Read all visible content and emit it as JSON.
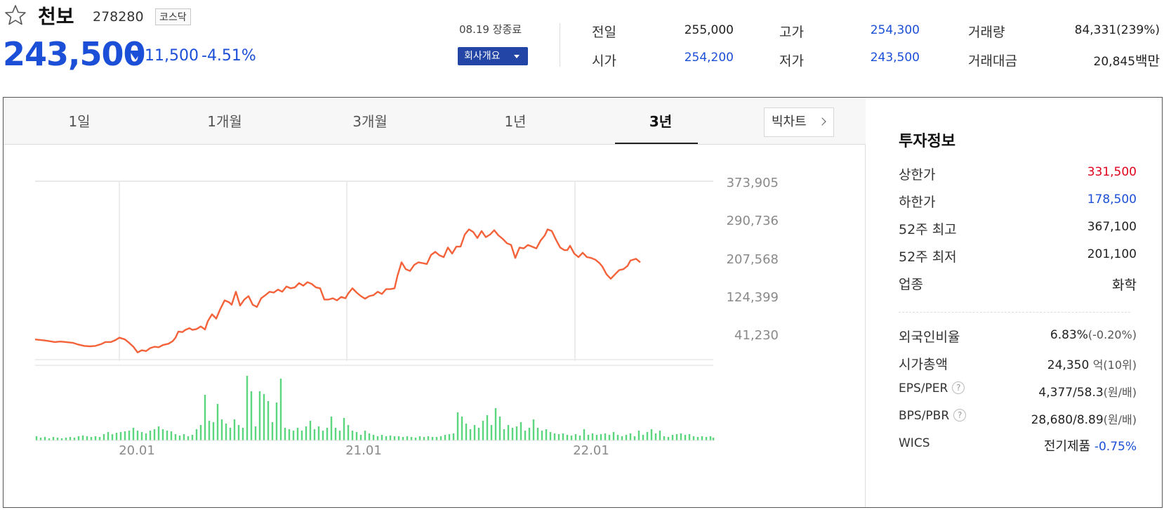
{
  "stock": {
    "name": "천보",
    "code": "278280",
    "market": "코스닥",
    "price": "243,500",
    "change": "11,500",
    "change_rate": "-4.51%",
    "trade_date": "08.19 장종료",
    "company_button": "회사개요"
  },
  "quote": {
    "prev_close_label": "전일",
    "prev_close": "255,000",
    "high_label": "고가",
    "high": "254,300",
    "volume_label": "거래량",
    "volume": "84,331(239%)",
    "open_label": "시가",
    "open": "254,200",
    "low_label": "저가",
    "low": "243,500",
    "amount_label": "거래대금",
    "amount": "20,845",
    "amount_unit": "백만"
  },
  "tabs": [
    "1일",
    "1개월",
    "3개월",
    "1년",
    "3년"
  ],
  "active_tab": "3년",
  "big_chart_label": "빅차트",
  "colors": {
    "up": "#e0001b",
    "down": "#1c4fd8",
    "line": "#f4623a",
    "volume": "#5cd67e",
    "button": "#2245a6"
  },
  "chart_data": {
    "type": "line",
    "y_ticks": [
      "373,905",
      "290,736",
      "207,568",
      "124,399",
      "41,230"
    ],
    "x_ticks": [
      "20.01",
      "21.01",
      "22.01"
    ],
    "ylim": [
      0,
      415000
    ],
    "price_series": [
      [
        0,
        50000
      ],
      [
        12,
        48000
      ],
      [
        20,
        46000
      ],
      [
        28,
        44000
      ],
      [
        36,
        45000
      ],
      [
        44,
        44000
      ],
      [
        54,
        42000
      ],
      [
        62,
        38000
      ],
      [
        70,
        35000
      ],
      [
        78,
        34000
      ],
      [
        86,
        35000
      ],
      [
        94,
        39000
      ],
      [
        100,
        44000
      ],
      [
        108,
        44000
      ],
      [
        114,
        48000
      ],
      [
        120,
        54000
      ],
      [
        128,
        50000
      ],
      [
        134,
        42000
      ],
      [
        140,
        33000
      ],
      [
        146,
        20000
      ],
      [
        152,
        25000
      ],
      [
        158,
        23000
      ],
      [
        164,
        30000
      ],
      [
        170,
        33000
      ],
      [
        176,
        32000
      ],
      [
        182,
        37000
      ],
      [
        190,
        40000
      ],
      [
        196,
        46000
      ],
      [
        200,
        54000
      ],
      [
        204,
        68000
      ],
      [
        210,
        67000
      ],
      [
        214,
        72000
      ],
      [
        220,
        76000
      ],
      [
        224,
        72000
      ],
      [
        230,
        74000
      ],
      [
        236,
        80000
      ],
      [
        242,
        73000
      ],
      [
        246,
        92000
      ],
      [
        252,
        108000
      ],
      [
        258,
        98000
      ],
      [
        264,
        121000
      ],
      [
        270,
        140000
      ],
      [
        276,
        136000
      ],
      [
        280,
        130000
      ],
      [
        286,
        160000
      ],
      [
        292,
        128000
      ],
      [
        298,
        142000
      ],
      [
        304,
        150000
      ],
      [
        310,
        130000
      ],
      [
        316,
        125000
      ],
      [
        322,
        145000
      ],
      [
        328,
        152000
      ],
      [
        334,
        160000
      ],
      [
        340,
        158000
      ],
      [
        346,
        165000
      ],
      [
        352,
        160000
      ],
      [
        358,
        172000
      ],
      [
        364,
        168000
      ],
      [
        370,
        170000
      ],
      [
        376,
        180000
      ],
      [
        382,
        174000
      ],
      [
        388,
        182000
      ],
      [
        394,
        178000
      ],
      [
        400,
        170000
      ],
      [
        406,
        168000
      ],
      [
        412,
        142000
      ],
      [
        418,
        142000
      ],
      [
        424,
        145000
      ],
      [
        430,
        140000
      ],
      [
        436,
        148000
      ],
      [
        442,
        145000
      ],
      [
        446,
        156000
      ],
      [
        452,
        168000
      ],
      [
        458,
        158000
      ],
      [
        464,
        150000
      ],
      [
        470,
        144000
      ],
      [
        476,
        150000
      ],
      [
        482,
        152000
      ],
      [
        488,
        160000
      ],
      [
        494,
        155000
      ],
      [
        500,
        166000
      ],
      [
        506,
        166000
      ],
      [
        512,
        168000
      ],
      [
        516,
        196000
      ],
      [
        522,
        228000
      ],
      [
        528,
        212000
      ],
      [
        534,
        208000
      ],
      [
        540,
        222000
      ],
      [
        546,
        228000
      ],
      [
        552,
        226000
      ],
      [
        558,
        224000
      ],
      [
        564,
        245000
      ],
      [
        570,
        252000
      ],
      [
        576,
        244000
      ],
      [
        582,
        240000
      ],
      [
        588,
        262000
      ],
      [
        594,
        248000
      ],
      [
        600,
        264000
      ],
      [
        606,
        264000
      ],
      [
        612,
        292000
      ],
      [
        618,
        304000
      ],
      [
        624,
        298000
      ],
      [
        630,
        284000
      ],
      [
        636,
        300000
      ],
      [
        642,
        286000
      ],
      [
        648,
        292000
      ],
      [
        654,
        302000
      ],
      [
        660,
        290000
      ],
      [
        666,
        282000
      ],
      [
        672,
        272000
      ],
      [
        678,
        268000
      ],
      [
        684,
        238000
      ],
      [
        690,
        262000
      ],
      [
        696,
        260000
      ],
      [
        702,
        268000
      ],
      [
        708,
        264000
      ],
      [
        714,
        260000
      ],
      [
        720,
        278000
      ],
      [
        726,
        290000
      ],
      [
        730,
        304000
      ],
      [
        736,
        300000
      ],
      [
        742,
        280000
      ],
      [
        748,
        262000
      ],
      [
        754,
        256000
      ],
      [
        758,
        256000
      ],
      [
        762,
        266000
      ],
      [
        768,
        248000
      ],
      [
        774,
        240000
      ],
      [
        780,
        250000
      ],
      [
        786,
        240000
      ],
      [
        792,
        238000
      ],
      [
        798,
        234000
      ],
      [
        804,
        226000
      ],
      [
        808,
        218000
      ],
      [
        814,
        200000
      ],
      [
        820,
        190000
      ],
      [
        826,
        200000
      ],
      [
        832,
        210000
      ],
      [
        838,
        212000
      ],
      [
        844,
        220000
      ],
      [
        848,
        232000
      ],
      [
        856,
        236000
      ],
      [
        862,
        228000
      ]
    ],
    "volume_bars": [
      {
        "x": 2,
        "v": 6
      },
      {
        "x": 8,
        "v": 4
      },
      {
        "x": 14,
        "v": 5
      },
      {
        "x": 20,
        "v": 3
      },
      {
        "x": 26,
        "v": 5
      },
      {
        "x": 32,
        "v": 4
      },
      {
        "x": 38,
        "v": 3
      },
      {
        "x": 44,
        "v": 4
      },
      {
        "x": 50,
        "v": 5
      },
      {
        "x": 56,
        "v": 4
      },
      {
        "x": 62,
        "v": 6
      },
      {
        "x": 68,
        "v": 7
      },
      {
        "x": 74,
        "v": 6
      },
      {
        "x": 80,
        "v": 5
      },
      {
        "x": 86,
        "v": 6
      },
      {
        "x": 92,
        "v": 5
      },
      {
        "x": 98,
        "v": 9
      },
      {
        "x": 104,
        "v": 12
      },
      {
        "x": 110,
        "v": 9
      },
      {
        "x": 116,
        "v": 11
      },
      {
        "x": 122,
        "v": 12
      },
      {
        "x": 128,
        "v": 13
      },
      {
        "x": 134,
        "v": 14
      },
      {
        "x": 140,
        "v": 18
      },
      {
        "x": 146,
        "v": 14
      },
      {
        "x": 152,
        "v": 12
      },
      {
        "x": 158,
        "v": 10
      },
      {
        "x": 164,
        "v": 14
      },
      {
        "x": 170,
        "v": 16
      },
      {
        "x": 176,
        "v": 20
      },
      {
        "x": 182,
        "v": 16
      },
      {
        "x": 188,
        "v": 14
      },
      {
        "x": 194,
        "v": 13
      },
      {
        "x": 200,
        "v": 9
      },
      {
        "x": 206,
        "v": 7
      },
      {
        "x": 212,
        "v": 9
      },
      {
        "x": 218,
        "v": 6
      },
      {
        "x": 224,
        "v": 8
      },
      {
        "x": 230,
        "v": 16
      },
      {
        "x": 236,
        "v": 22
      },
      {
        "x": 242,
        "v": 65
      },
      {
        "x": 248,
        "v": 28
      },
      {
        "x": 254,
        "v": 26
      },
      {
        "x": 260,
        "v": 52
      },
      {
        "x": 266,
        "v": 30
      },
      {
        "x": 272,
        "v": 24
      },
      {
        "x": 278,
        "v": 18
      },
      {
        "x": 284,
        "v": 30
      },
      {
        "x": 290,
        "v": 22
      },
      {
        "x": 296,
        "v": 18
      },
      {
        "x": 302,
        "v": 92
      },
      {
        "x": 308,
        "v": 70
      },
      {
        "x": 314,
        "v": 20
      },
      {
        "x": 320,
        "v": 70
      },
      {
        "x": 326,
        "v": 66
      },
      {
        "x": 332,
        "v": 56
      },
      {
        "x": 338,
        "v": 26
      },
      {
        "x": 344,
        "v": 54
      },
      {
        "x": 350,
        "v": 88
      },
      {
        "x": 356,
        "v": 18
      },
      {
        "x": 362,
        "v": 16
      },
      {
        "x": 368,
        "v": 14
      },
      {
        "x": 374,
        "v": 18
      },
      {
        "x": 380,
        "v": 14
      },
      {
        "x": 386,
        "v": 20
      },
      {
        "x": 392,
        "v": 28
      },
      {
        "x": 398,
        "v": 16
      },
      {
        "x": 404,
        "v": 20
      },
      {
        "x": 410,
        "v": 14
      },
      {
        "x": 416,
        "v": 18
      },
      {
        "x": 422,
        "v": 34
      },
      {
        "x": 428,
        "v": 18
      },
      {
        "x": 434,
        "v": 14
      },
      {
        "x": 440,
        "v": 32
      },
      {
        "x": 446,
        "v": 22
      },
      {
        "x": 452,
        "v": 14
      },
      {
        "x": 458,
        "v": 12
      },
      {
        "x": 464,
        "v": 8
      },
      {
        "x": 470,
        "v": 14
      },
      {
        "x": 476,
        "v": 10
      },
      {
        "x": 482,
        "v": 8
      },
      {
        "x": 488,
        "v": 6
      },
      {
        "x": 494,
        "v": 8
      },
      {
        "x": 500,
        "v": 6
      },
      {
        "x": 506,
        "v": 7
      },
      {
        "x": 512,
        "v": 6
      },
      {
        "x": 518,
        "v": 6
      },
      {
        "x": 524,
        "v": 5
      },
      {
        "x": 530,
        "v": 6
      },
      {
        "x": 536,
        "v": 5
      },
      {
        "x": 542,
        "v": 4
      },
      {
        "x": 548,
        "v": 6
      },
      {
        "x": 554,
        "v": 5
      },
      {
        "x": 560,
        "v": 6
      },
      {
        "x": 566,
        "v": 5
      },
      {
        "x": 572,
        "v": 5
      },
      {
        "x": 578,
        "v": 6
      },
      {
        "x": 584,
        "v": 8
      },
      {
        "x": 590,
        "v": 9
      },
      {
        "x": 596,
        "v": 10
      },
      {
        "x": 602,
        "v": 40
      },
      {
        "x": 608,
        "v": 34
      },
      {
        "x": 614,
        "v": 24
      },
      {
        "x": 620,
        "v": 16
      },
      {
        "x": 626,
        "v": 22
      },
      {
        "x": 632,
        "v": 18
      },
      {
        "x": 638,
        "v": 28
      },
      {
        "x": 644,
        "v": 36
      },
      {
        "x": 650,
        "v": 22
      },
      {
        "x": 656,
        "v": 46
      },
      {
        "x": 662,
        "v": 34
      },
      {
        "x": 668,
        "v": 16
      },
      {
        "x": 674,
        "v": 22
      },
      {
        "x": 680,
        "v": 18
      },
      {
        "x": 686,
        "v": 20
      },
      {
        "x": 692,
        "v": 26
      },
      {
        "x": 698,
        "v": 14
      },
      {
        "x": 704,
        "v": 18
      },
      {
        "x": 710,
        "v": 30
      },
      {
        "x": 716,
        "v": 18
      },
      {
        "x": 722,
        "v": 14
      },
      {
        "x": 728,
        "v": 16
      },
      {
        "x": 734,
        "v": 12
      },
      {
        "x": 740,
        "v": 10
      },
      {
        "x": 746,
        "v": 9
      },
      {
        "x": 752,
        "v": 10
      },
      {
        "x": 758,
        "v": 8
      },
      {
        "x": 764,
        "v": 7
      },
      {
        "x": 770,
        "v": 9
      },
      {
        "x": 776,
        "v": 7
      },
      {
        "x": 782,
        "v": 16
      },
      {
        "x": 788,
        "v": 8
      },
      {
        "x": 794,
        "v": 10
      },
      {
        "x": 800,
        "v": 8
      },
      {
        "x": 806,
        "v": 9
      },
      {
        "x": 812,
        "v": 10
      },
      {
        "x": 818,
        "v": 8
      },
      {
        "x": 824,
        "v": 12
      },
      {
        "x": 830,
        "v": 8
      },
      {
        "x": 836,
        "v": 6
      },
      {
        "x": 842,
        "v": 8
      },
      {
        "x": 848,
        "v": 10
      },
      {
        "x": 854,
        "v": 6
      },
      {
        "x": 860,
        "v": 14
      },
      {
        "x": 866,
        "v": 8
      },
      {
        "x": 872,
        "v": 12
      },
      {
        "x": 878,
        "v": 16
      },
      {
        "x": 884,
        "v": 10
      },
      {
        "x": 890,
        "v": 14
      },
      {
        "x": 896,
        "v": 6
      },
      {
        "x": 902,
        "v": 5
      },
      {
        "x": 908,
        "v": 8
      },
      {
        "x": 914,
        "v": 9
      },
      {
        "x": 920,
        "v": 10
      },
      {
        "x": 926,
        "v": 8
      },
      {
        "x": 932,
        "v": 9
      },
      {
        "x": 938,
        "v": 6
      },
      {
        "x": 944,
        "v": 5
      },
      {
        "x": 950,
        "v": 6
      },
      {
        "x": 956,
        "v": 5
      },
      {
        "x": 962,
        "v": 6
      },
      {
        "x": 966,
        "v": 4
      }
    ]
  },
  "invest_info": {
    "title": "투자정보",
    "upper_limit_label": "상한가",
    "upper_limit": "331,500",
    "lower_limit_label": "하한가",
    "lower_limit": "178,500",
    "high52_label": "52주 최고",
    "high52": "367,100",
    "low52_label": "52주 최저",
    "low52": "201,100",
    "sector_label": "업종",
    "sector": "화학",
    "foreign_label": "외국인비율",
    "foreign": "6.83%",
    "foreign_change": "(-0.20%)",
    "mcap_label": "시가총액",
    "mcap": "24,350",
    "mcap_unit": "억",
    "mcap_rank": "(10위)",
    "eps_label": "EPS/PER",
    "eps": "4,377/58.3",
    "eps_unit": "(원/배)",
    "bps_label": "BPS/PBR",
    "bps": "28,680/8.89",
    "bps_unit": "(원/배)",
    "wics_label": "WICS",
    "wics": "전기제품",
    "wics_change": "-0.75%"
  }
}
